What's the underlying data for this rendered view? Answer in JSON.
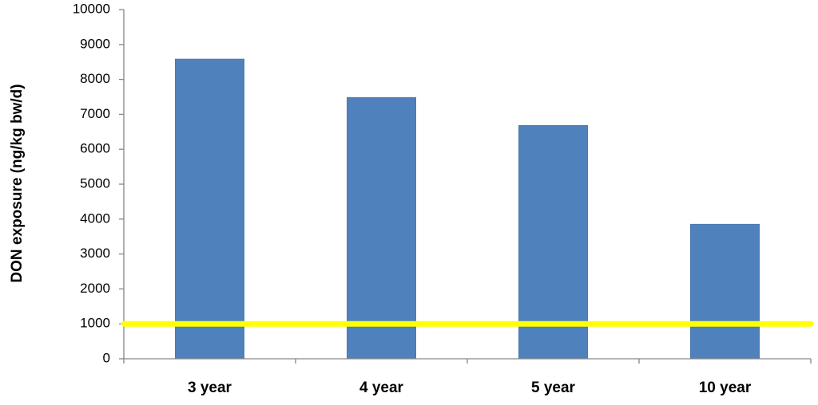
{
  "chart_data": {
    "type": "bar",
    "y_label": "DON exposure (ng/kg bw/d)",
    "categories": [
      "3 year",
      "4 year",
      "5 year",
      "10 year"
    ],
    "values": [
      8580,
      7480,
      6680,
      3850
    ],
    "color": "#4f81bd",
    "ylim": [
      0,
      10000
    ],
    "yticks": [
      0,
      1000,
      2000,
      3000,
      4000,
      5000,
      6000,
      7000,
      8000,
      9000,
      10000
    ],
    "grid": false,
    "reference_line": {
      "value": 1000,
      "color": "#ffff00"
    }
  }
}
